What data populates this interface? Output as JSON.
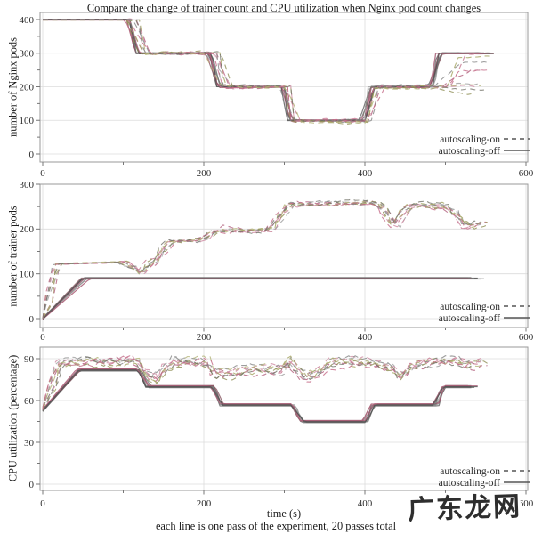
{
  "title": "Compare the change of trainer count and CPU utilization when Nginx pod count changes",
  "caption": "each line is one pass of the experiment, 20 passes total",
  "xlabel": "time (s)",
  "watermark": "广东龙网",
  "legend": {
    "on": "autoscaling-on",
    "off": "autoscaling-off"
  },
  "palette": {
    "off": [
      "#636363",
      "#757575",
      "#8c8c8c",
      "#5a5a5a",
      "#9e9e9e",
      "#a34e68",
      "#86555f",
      "#6e6e6e",
      "#b5657f",
      "#4f4f4f"
    ],
    "on": [
      "#c4768f",
      "#b05c7a",
      "#9d9d9d",
      "#a3a35f",
      "#8e8e55",
      "#cf8ba3",
      "#858585",
      "#b3b377",
      "#c46a87",
      "#74746a"
    ],
    "grid": "#dcdcdc",
    "spine": "#9a9a9a",
    "tick": "#777777",
    "text": "#2b2b2b",
    "legend_line": "#555555"
  },
  "chart_data": [
    {
      "type": "line",
      "ylabel": "number of Nginx pods",
      "xlim": [
        0,
        600
      ],
      "ylim": [
        0,
        400
      ],
      "xticks": [
        0,
        200,
        400,
        600
      ],
      "yticks": [
        0,
        100,
        200,
        300,
        400
      ],
      "minor_x_step": 100,
      "minor_y_step": 50,
      "passes_total": 20,
      "series": [
        {
          "name": "autoscaling-off",
          "style": "solid",
          "passes": 10,
          "tj": 5,
          "noise": 1,
          "noise_from": 100,
          "spread": 1.5,
          "end_jitter": 5,
          "base": [
            [
              0,
              400
            ],
            [
              107,
              400
            ],
            [
              117,
              300
            ],
            [
              207,
              300
            ],
            [
              217,
              200
            ],
            [
              297,
              200
            ],
            [
              307,
              100
            ],
            [
              398,
              100
            ],
            [
              408,
              200
            ],
            [
              483,
              200
            ],
            [
              492,
              300
            ],
            [
              556,
              300
            ]
          ]
        },
        {
          "name": "autoscaling-on",
          "style": "dashed",
          "passes": 10,
          "tj": 11,
          "noise": 5,
          "noise_from": 105,
          "spread": 2,
          "end_jitter": 9,
          "base": [
            [
              0,
              400
            ],
            [
              111,
              400
            ],
            [
              126,
              300
            ],
            [
              211,
              300
            ],
            [
              225,
              200
            ],
            [
              301,
              200
            ],
            [
              314,
              100
            ],
            [
              401,
              100
            ],
            [
              415,
              200
            ],
            [
              497,
              200
            ],
            [
              523,
              "T"
            ],
            [
              549,
              "T"
            ]
          ],
          "tails": [
            300,
            250,
            205,
            290,
            182,
            200,
            272,
            210,
            250,
            192
          ]
        }
      ]
    },
    {
      "type": "line",
      "ylabel": "number of trainer pods",
      "xlim": [
        0,
        600
      ],
      "ylim": [
        0,
        300
      ],
      "xticks": [
        0,
        200,
        400,
        600
      ],
      "yticks": [
        0,
        100,
        200,
        300
      ],
      "minor_x_step": 100,
      "minor_y_step": 50,
      "passes_total": 20,
      "series": [
        {
          "name": "autoscaling-off",
          "style": "solid",
          "passes": 10,
          "tj": 7,
          "noise": 0.4,
          "noise_from": 900,
          "spread": 1.6,
          "end_jitter": 8,
          "base": [
            [
              0,
              0
            ],
            [
              52,
              90
            ],
            [
              538,
              90
            ]
          ]
        },
        {
          "name": "autoscaling-on",
          "style": "dashed",
          "passes": 10,
          "tj": 8,
          "noise": 6,
          "noise_from": 95,
          "spread": 2,
          "end_jitter": 9,
          "base": [
            [
              0,
              0
            ],
            [
              6,
              40
            ],
            [
              16,
              122
            ],
            [
              100,
              126
            ],
            [
              111,
              112
            ],
            [
              121,
              100
            ],
            [
              131,
              120
            ],
            [
              141,
              128
            ],
            [
              150,
              150
            ],
            [
              158,
              172
            ],
            [
              200,
              174
            ],
            [
              212,
              192
            ],
            [
              224,
              197
            ],
            [
              282,
              198
            ],
            [
              294,
              228
            ],
            [
              305,
              255
            ],
            [
              415,
              257
            ],
            [
              427,
              235
            ],
            [
              437,
              205
            ],
            [
              448,
              240
            ],
            [
              458,
              252
            ],
            [
              497,
              252
            ],
            [
              512,
              235
            ],
            [
              527,
              205
            ],
            [
              543,
              214
            ]
          ]
        }
      ]
    },
    {
      "type": "line",
      "ylabel": "CPU utilization (percentage)",
      "xlim": [
        0,
        600
      ],
      "ylim": [
        0,
        90
      ],
      "xticks": [
        0,
        200,
        400,
        600
      ],
      "yticks": [
        0,
        30,
        60,
        90
      ],
      "minor_x_step": 100,
      "minor_y_step": 15,
      "passes_total": 20,
      "series": [
        {
          "name": "autoscaling-off",
          "style": "solid",
          "passes": 10,
          "tj": 4,
          "noise": 0.3,
          "noise_from": 900,
          "spread": 1.1,
          "end_jitter": 5,
          "base": [
            [
              0,
              53
            ],
            [
              44,
              82
            ],
            [
              121,
              82
            ],
            [
              131,
              70
            ],
            [
              211,
              70
            ],
            [
              221,
              57
            ],
            [
              311,
              57
            ],
            [
              321,
              45
            ],
            [
              401,
              45
            ],
            [
              411,
              57
            ],
            [
              488,
              57
            ],
            [
              497,
              70
            ],
            [
              536,
              70
            ]
          ]
        },
        {
          "name": "autoscaling-on",
          "style": "dashed",
          "passes": 10,
          "tj": 7,
          "noise": 3.2,
          "noise_from": 10,
          "spread": 1.5,
          "end_jitter": 8,
          "base": [
            [
              0,
              54
            ],
            [
              12,
              72
            ],
            [
              22,
              87
            ],
            [
              118,
              88
            ],
            [
              129,
              79
            ],
            [
              141,
              74
            ],
            [
              154,
              84
            ],
            [
              164,
              88
            ],
            [
              205,
              88
            ],
            [
              214,
              80
            ],
            [
              234,
              78
            ],
            [
              254,
              81
            ],
            [
              299,
              82
            ],
            [
              307,
              89
            ],
            [
              317,
              82
            ],
            [
              329,
              76
            ],
            [
              344,
              82
            ],
            [
              359,
              87
            ],
            [
              394,
              88
            ],
            [
              429,
              84
            ],
            [
              444,
              77
            ],
            [
              459,
              85
            ],
            [
              474,
              87
            ],
            [
              514,
              88
            ],
            [
              529,
              84
            ],
            [
              544,
              88
            ]
          ]
        }
      ]
    }
  ]
}
